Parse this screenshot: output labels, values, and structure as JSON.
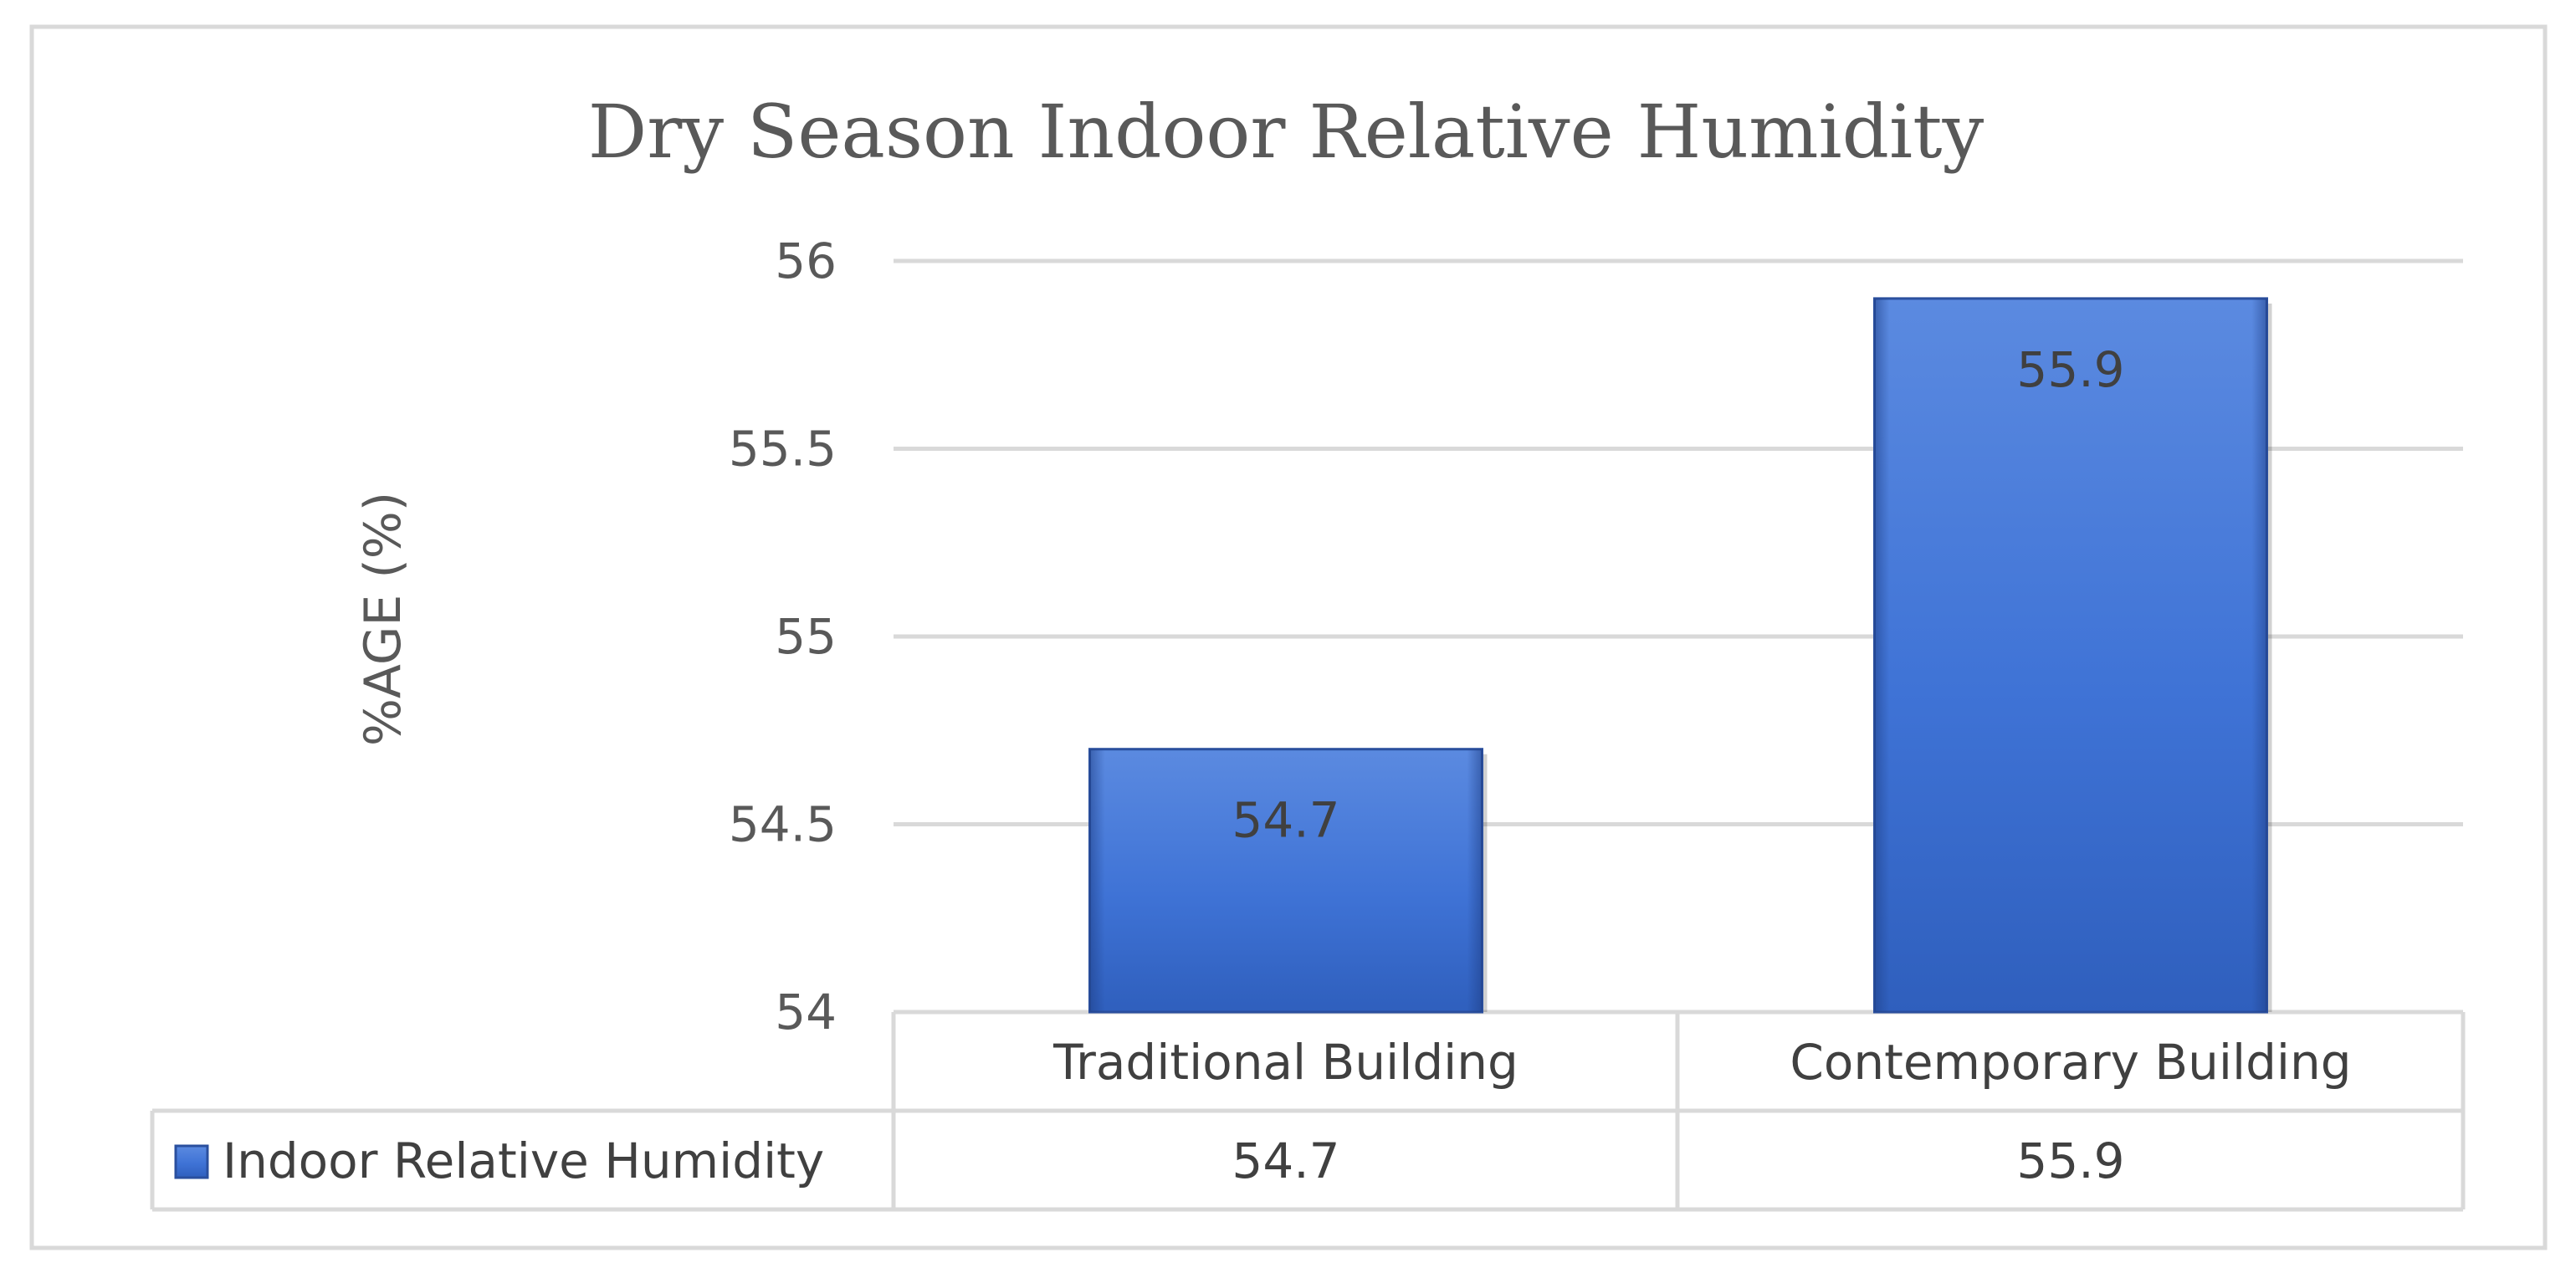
{
  "chart_data": {
    "type": "bar",
    "title": "Dry Season Indoor Relative Humidity",
    "ylabel": "%AGE (%)",
    "xlabel": "",
    "categories": [
      "Traditional Building",
      "Contemporary Building"
    ],
    "series": [
      {
        "name": "Indoor Relative Humidity",
        "values": [
          54.7,
          55.9
        ],
        "color": "#3b6fd4"
      }
    ],
    "ylim": [
      54,
      56
    ],
    "yticks": [
      54,
      54.5,
      55,
      55.5,
      56
    ],
    "ytick_labels": [
      "54",
      "54.5",
      "55",
      "55.5",
      "56"
    ],
    "data_labels": [
      "54.7",
      "55.9"
    ],
    "data_table": true,
    "grid": true,
    "legend": "data-table"
  }
}
